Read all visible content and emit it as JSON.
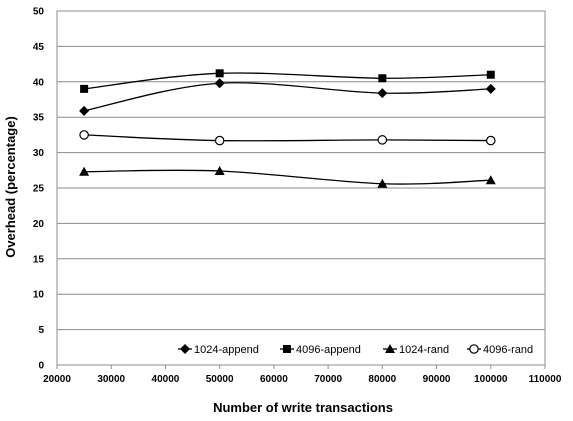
{
  "chart_data": {
    "type": "line",
    "xlabel": "Number of write transactions",
    "ylabel": "Overhead (percentage)",
    "xlim": [
      20000,
      110000
    ],
    "ylim": [
      0,
      50
    ],
    "xticks": [
      20000,
      30000,
      40000,
      50000,
      60000,
      70000,
      80000,
      90000,
      100000,
      110000
    ],
    "yticks": [
      0,
      5,
      10,
      15,
      20,
      25,
      30,
      35,
      40,
      45,
      50
    ],
    "grid": "horizontal",
    "legend_position": "bottom-right",
    "x": [
      25000,
      50000,
      80000,
      100000
    ],
    "series": [
      {
        "name": "1024-append",
        "marker": "diamond",
        "values": [
          35.9,
          39.8,
          38.4,
          39.0
        ]
      },
      {
        "name": "4096-append",
        "marker": "square",
        "values": [
          39.0,
          41.2,
          40.5,
          41.0
        ]
      },
      {
        "name": "1024-rand",
        "marker": "triangle",
        "values": [
          27.3,
          27.4,
          25.6,
          26.1
        ]
      },
      {
        "name": "4096-rand",
        "marker": "circle-open",
        "values": [
          32.5,
          31.7,
          31.8,
          31.7
        ]
      }
    ]
  }
}
